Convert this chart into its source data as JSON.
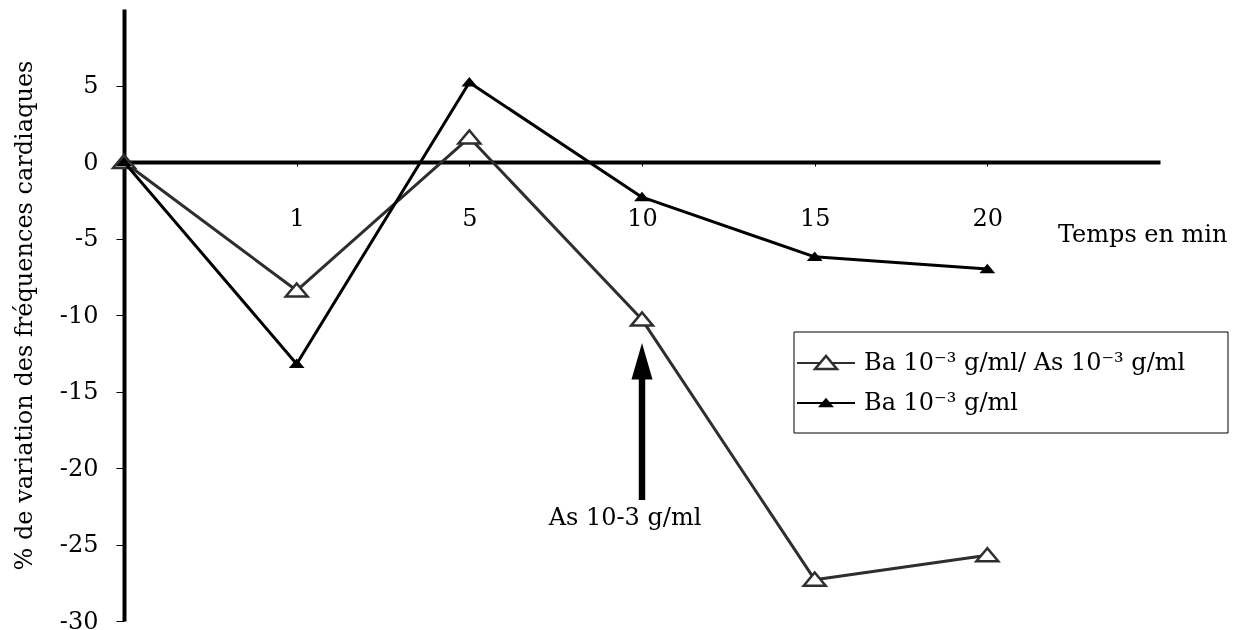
{
  "chart_data": {
    "type": "line",
    "xlabel": "Temps en min",
    "ylabel": "% de variation des fréquences cardiaques",
    "categories": [
      null,
      "1",
      "5",
      "10",
      "15",
      "20"
    ],
    "series": [
      {
        "name": "Ba 10⁻³ g/ml/ As 10⁻³ g/ml",
        "color": "#2e2e2e",
        "values": [
          0,
          -8.4,
          1.6,
          -10.3,
          -27.3,
          -25.7
        ]
      },
      {
        "name": "Ba 10⁻³ g/ml",
        "color": "#000000",
        "values": [
          0,
          -13.2,
          5.2,
          -2.3,
          -6.2,
          -7.0
        ]
      }
    ],
    "ylim": [
      -30,
      10
    ],
    "yticks": [
      -30,
      -25,
      -20,
      -15,
      -10,
      -5,
      0,
      5
    ],
    "annotations": [
      "As 10-3 g/ml"
    ],
    "legend": "right",
    "marker": "triangle",
    "grid": false
  }
}
